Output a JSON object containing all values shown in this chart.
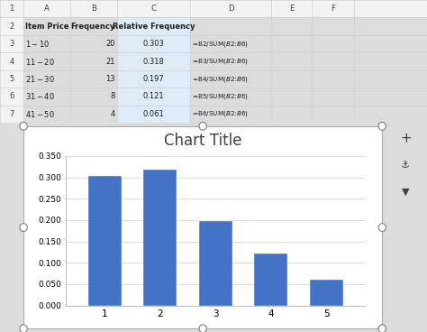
{
  "title": "Chart Title",
  "x_labels": [
    "1",
    "2",
    "3",
    "4",
    "5"
  ],
  "values": [
    0.303,
    0.318,
    0.197,
    0.121,
    0.061
  ],
  "bar_color": "#4472C4",
  "ylim": [
    0,
    0.35
  ],
  "yticks": [
    0.0,
    0.05,
    0.1,
    0.15,
    0.2,
    0.25,
    0.3,
    0.35
  ],
  "ytick_labels": [
    "0.000",
    "0.050",
    "0.100",
    "0.150",
    "0.200",
    "0.250",
    "0.300",
    "0.350"
  ],
  "grid_color": "#D9D9D9",
  "title_fontsize": 12,
  "col_headers": [
    "A",
    "B",
    "C",
    "D",
    "E",
    "F"
  ],
  "row_numbers": [
    "1",
    "2",
    "3",
    "4",
    "5",
    "6",
    "7"
  ],
  "col_A": [
    "Item Price",
    "$1 - $10",
    "$11 - $20",
    "$21 - $30",
    "$31 - $40",
    "$41 - $50"
  ],
  "col_B": [
    "Frequency",
    "20",
    "21",
    "13",
    "8",
    "4"
  ],
  "col_C": [
    "Relative Frequency",
    "0.303",
    "0.318",
    "0.197",
    "0.121",
    "0.061"
  ],
  "col_D": [
    "",
    "=B2/SUM($B$2:$B$6)",
    "=B3/SUM($B$2:$B$6)",
    "=B4/SUM($B$2:$B$6)",
    "=B5/SUM($B$2:$B$6)",
    "=B6/SUM($B$2:$B$6)"
  ],
  "cell_bg": "#FFFFFF",
  "header_row_bg": "#F2F2F2",
  "row_num_bg": "#F2F2F2",
  "highlight_bg": "#DDEBF7",
  "grid_line_color": "#D0D0D0",
  "chart_border_color": "#ABABAB",
  "handle_color": "#FFFFFF",
  "handle_edge_color": "#7F7F7F",
  "icon_bg": "#F2F2F2",
  "icon_border": "#BFBFBF"
}
